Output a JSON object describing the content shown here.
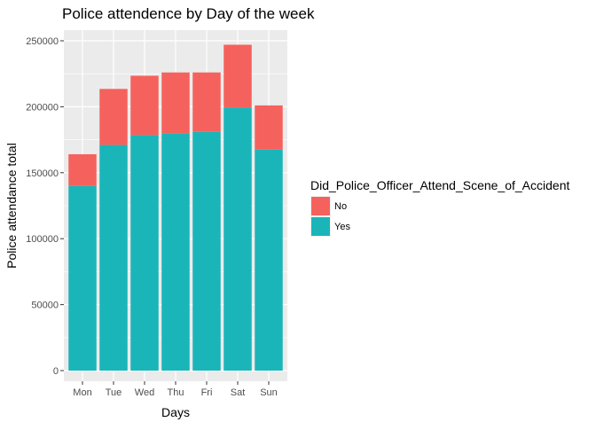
{
  "chart_data": {
    "type": "bar",
    "stacked": true,
    "title": "Police attendence by Day of the week",
    "xlabel": "Days",
    "ylabel": "Police attendance total",
    "categories": [
      "Mon",
      "Tue",
      "Wed",
      "Thu",
      "Fri",
      "Sat",
      "Sun"
    ],
    "series": [
      {
        "name": "Yes",
        "color": "#1ab5b9",
        "values": [
          140000,
          171000,
          178500,
          180000,
          181000,
          199500,
          167500
        ]
      },
      {
        "name": "No",
        "color": "#f5625d",
        "values": [
          24000,
          42500,
          45000,
          46000,
          45000,
          47500,
          33500
        ]
      }
    ],
    "ylim": [
      0,
      262000
    ],
    "yticks": [
      0,
      50000,
      100000,
      150000,
      200000,
      250000
    ],
    "ytick_labels": [
      "0",
      "50000",
      "100000",
      "150000",
      "200000",
      "250000"
    ],
    "grid": true,
    "legend": {
      "title": "Did_Police_Officer_Attend_Scene_of_Accident",
      "position": "right",
      "entries": [
        {
          "label": "No",
          "color": "#f5625d"
        },
        {
          "label": "Yes",
          "color": "#1ab5b9"
        }
      ]
    },
    "panel_background": "#ebebeb",
    "grid_color": "#ffffff"
  }
}
